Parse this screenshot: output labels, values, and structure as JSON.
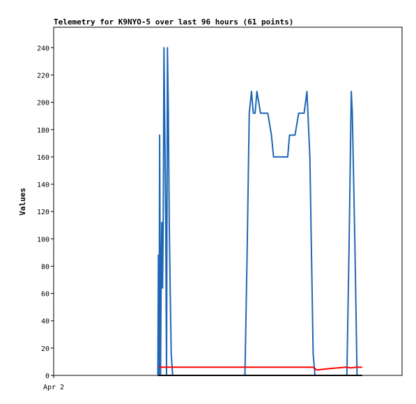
{
  "chart_data": {
    "type": "line",
    "title": "Telemetry for K9NYO-5 over last 96 hours (61 points)",
    "xlabel": "",
    "ylabel": "Values",
    "ylim": [
      0,
      255
    ],
    "yticks": [
      0,
      20,
      40,
      60,
      80,
      100,
      120,
      140,
      160,
      180,
      200,
      220,
      240
    ],
    "xticks": [
      {
        "label": "Apr 2",
        "x": 0
      }
    ],
    "xlim": [
      0,
      96
    ],
    "grid": false,
    "legend": "none",
    "colors": {
      "blue": "#1f66b4",
      "red": "#ff0000",
      "black": "#000000"
    },
    "series": [
      {
        "color": "#1f66b4",
        "points": [
          [
            28.7,
            0
          ],
          [
            28.85,
            88
          ],
          [
            29.05,
            0
          ],
          [
            29.2,
            176
          ],
          [
            29.45,
            0
          ],
          [
            29.65,
            80
          ],
          [
            29.8,
            112
          ],
          [
            30.0,
            64
          ],
          [
            30.2,
            112
          ],
          [
            30.4,
            240
          ],
          [
            30.65,
            176
          ],
          [
            30.9,
            112
          ],
          [
            31.1,
            0
          ],
          [
            31.35,
            240
          ],
          [
            31.6,
            192
          ],
          [
            31.85,
            112
          ],
          [
            32.1,
            64
          ],
          [
            32.4,
            16
          ],
          [
            32.8,
            0
          ],
          [
            52.7,
            0
          ],
          [
            53.3,
            88
          ],
          [
            53.9,
            192
          ],
          [
            54.5,
            208
          ],
          [
            55.0,
            192
          ],
          [
            55.5,
            192
          ],
          [
            56.0,
            208
          ],
          [
            57.0,
            192
          ],
          [
            59.0,
            192
          ],
          [
            60.0,
            176
          ],
          [
            60.6,
            160
          ],
          [
            62.0,
            160
          ],
          [
            63.5,
            160
          ],
          [
            64.5,
            160
          ],
          [
            65.0,
            176
          ],
          [
            66.5,
            176
          ],
          [
            67.5,
            192
          ],
          [
            69.0,
            192
          ],
          [
            69.8,
            208
          ],
          [
            70.6,
            160
          ],
          [
            71.5,
            16
          ],
          [
            72.0,
            0
          ],
          [
            80.8,
            0
          ],
          [
            81.4,
            96
          ],
          [
            82.0,
            208
          ],
          [
            82.3,
            192
          ],
          [
            83.0,
            96
          ],
          [
            83.6,
            0
          ],
          [
            85.0,
            0
          ]
        ]
      },
      {
        "color": "#ff0000",
        "points": [
          [
            29.0,
            6
          ],
          [
            30.0,
            6
          ],
          [
            71.5,
            6
          ],
          [
            72.5,
            4
          ],
          [
            76.0,
            5
          ],
          [
            80.5,
            6
          ],
          [
            82.0,
            5.5
          ],
          [
            83.3,
            6
          ],
          [
            85.0,
            6
          ]
        ]
      },
      {
        "color": "#000000",
        "points": [
          [
            28.7,
            0
          ],
          [
            85.0,
            0
          ]
        ]
      }
    ]
  }
}
